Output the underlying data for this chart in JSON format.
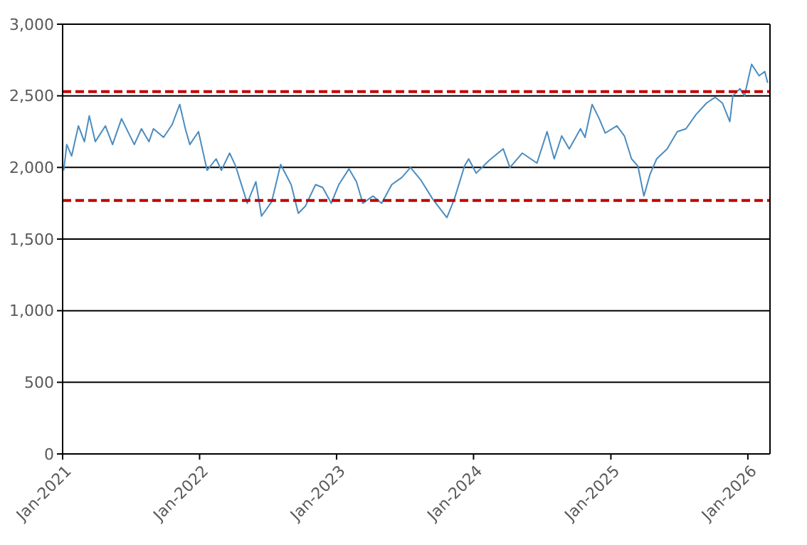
{
  "chart_data": {
    "type": "line",
    "xlim": [
      "2021-01-01",
      "2026-03-01"
    ],
    "xticks": [
      {
        "value": "2021-01-01",
        "label": "Jan-2021"
      },
      {
        "value": "2022-01-01",
        "label": "Jan-2022"
      },
      {
        "value": "2023-01-01",
        "label": "Jan-2023"
      },
      {
        "value": "2024-01-01",
        "label": "Jan-2024"
      },
      {
        "value": "2025-01-01",
        "label": "Jan-2025"
      },
      {
        "value": "2026-01-01",
        "label": "Jan-2026"
      }
    ],
    "ylim": [
      0,
      3000
    ],
    "yticks": [
      {
        "value": 0,
        "label": "0"
      },
      {
        "value": 500,
        "label": "500"
      },
      {
        "value": 1000,
        "label": "1,000"
      },
      {
        "value": 1500,
        "label": "1,500"
      },
      {
        "value": 2000,
        "label": "2,000"
      },
      {
        "value": 2500,
        "label": "2,500"
      },
      {
        "value": 3000,
        "label": "3,000"
      }
    ],
    "grid": "y",
    "line_style": "solid",
    "marker": "none",
    "ref_lines": [
      {
        "axis": "y",
        "value": 2530,
        "color": "#c00000",
        "line_style": "dashed"
      },
      {
        "axis": "y",
        "value": 1770,
        "color": "#c00000",
        "line_style": "dashed"
      }
    ],
    "x": [
      "2021-01-04",
      "2021-01-12",
      "2021-01-25",
      "2021-02-12",
      "2021-02-28",
      "2021-03-13",
      "2021-03-29",
      "2021-04-25",
      "2021-05-14",
      "2021-06-07",
      "2021-07-11",
      "2021-07-30",
      "2021-08-19",
      "2021-08-31",
      "2021-09-27",
      "2021-10-20",
      "2021-11-09",
      "2021-11-24",
      "2021-12-06",
      "2021-12-29",
      "2022-01-21",
      "2022-02-14",
      "2022-02-28",
      "2022-03-22",
      "2022-04-07",
      "2022-05-08",
      "2022-05-31",
      "2022-06-15",
      "2022-07-12",
      "2022-08-05",
      "2022-09-02",
      "2022-09-21",
      "2022-10-10",
      "2022-11-06",
      "2022-11-25",
      "2022-12-18",
      "2023-01-07",
      "2023-02-03",
      "2023-02-23",
      "2023-03-12",
      "2023-04-08",
      "2023-05-01",
      "2023-05-28",
      "2023-06-24",
      "2023-07-17",
      "2023-08-14",
      "2023-09-14",
      "2023-10-22",
      "2023-11-11",
      "2023-12-08",
      "2023-12-19",
      "2024-01-08",
      "2024-02-12",
      "2024-03-20",
      "2024-04-07",
      "2024-05-10",
      "2024-06-18",
      "2024-07-15",
      "2024-08-03",
      "2024-08-23",
      "2024-09-12",
      "2024-10-12",
      "2024-10-24",
      "2024-11-12",
      "2024-12-01",
      "2024-12-17",
      "2025-01-17",
      "2025-02-06",
      "2025-02-25",
      "2025-03-14",
      "2025-03-30",
      "2025-04-15",
      "2025-05-03",
      "2025-05-31",
      "2025-06-27",
      "2025-07-20",
      "2025-08-16",
      "2025-09-13",
      "2025-10-06",
      "2025-10-25",
      "2025-11-14",
      "2025-11-22",
      "2025-12-11",
      "2025-12-23",
      "2026-01-11",
      "2026-01-31",
      "2026-02-15",
      "2026-02-23"
    ],
    "series": [
      {
        "color": "#4a8cc0",
        "values": [
          1980,
          2160,
          2080,
          2290,
          2180,
          2360,
          2180,
          2290,
          2160,
          2340,
          2160,
          2270,
          2180,
          2270,
          2210,
          2300,
          2440,
          2270,
          2160,
          2250,
          1980,
          2060,
          1980,
          2100,
          2010,
          1750,
          1900,
          1660,
          1760,
          2020,
          1880,
          1680,
          1730,
          1880,
          1860,
          1750,
          1880,
          1990,
          1900,
          1750,
          1800,
          1750,
          1880,
          1930,
          2000,
          1910,
          1780,
          1650,
          1780,
          2010,
          2060,
          1960,
          2050,
          2130,
          2000,
          2100,
          2030,
          2250,
          2060,
          2220,
          2130,
          2270,
          2210,
          2440,
          2340,
          2240,
          2290,
          2220,
          2060,
          2010,
          1800,
          1950,
          2060,
          2130,
          2250,
          2270,
          2370,
          2450,
          2490,
          2450,
          2320,
          2500,
          2550,
          2500,
          2720,
          2640,
          2670,
          2590
        ]
      }
    ]
  }
}
